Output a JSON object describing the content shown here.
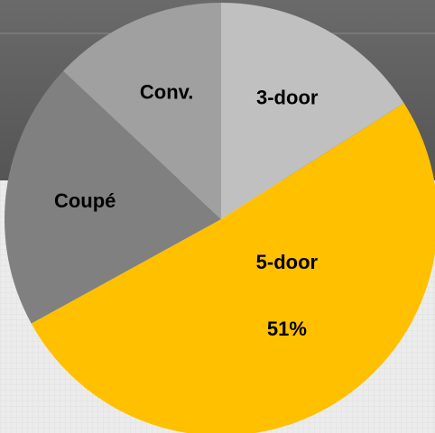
{
  "chart_data": {
    "type": "pie",
    "categories": [
      "3-door",
      "5-door",
      "Coupé",
      "Conv."
    ],
    "values": [
      16,
      51,
      20,
      13
    ],
    "value_labels": [
      null,
      "51%",
      null,
      null
    ],
    "colors": [
      "#c0c0c0",
      "#ffc000",
      "#808080",
      "#a0a0a0"
    ],
    "start_angle": 0,
    "direction": "clockwise"
  }
}
